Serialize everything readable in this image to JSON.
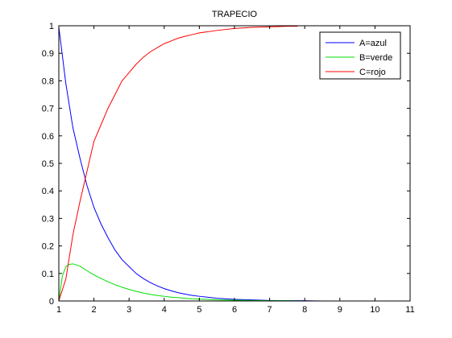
{
  "chart_data": {
    "type": "line",
    "title": "TRAPECIO",
    "xlabel": "",
    "ylabel": "",
    "xlim": [
      1,
      11
    ],
    "ylim": [
      0,
      1
    ],
    "xticks": [
      1,
      2,
      3,
      4,
      5,
      6,
      7,
      8,
      9,
      10,
      11
    ],
    "yticks": [
      0,
      0.1,
      0.2,
      0.3,
      0.4,
      0.5,
      0.6,
      0.7,
      0.8,
      0.9,
      1
    ],
    "grid": false,
    "legend": "top-right",
    "series": [
      {
        "name": "A=azul",
        "color": "#0000ff",
        "x": [
          1.0,
          1.2,
          1.4,
          1.6,
          1.8,
          2.0,
          2.2,
          2.4,
          2.6,
          2.8,
          3.0,
          3.2,
          3.4,
          3.6,
          3.8,
          4.0,
          4.2,
          4.4,
          4.6,
          4.8,
          5.0,
          5.5,
          6.0,
          6.5,
          7.0,
          7.5,
          8.0,
          8.5,
          9.0,
          9.5,
          10.0
        ],
        "y": [
          0.995,
          0.79,
          0.63,
          0.52,
          0.42,
          0.34,
          0.28,
          0.23,
          0.185,
          0.15,
          0.125,
          0.1,
          0.082,
          0.067,
          0.055,
          0.045,
          0.037,
          0.03,
          0.025,
          0.02,
          0.017,
          0.01,
          0.006,
          0.004,
          0.002,
          0.001,
          0.001,
          0.0,
          0.0,
          0.0,
          0.0
        ]
      },
      {
        "name": "B=verde",
        "color": "#00dd00",
        "x": [
          1.0,
          1.1,
          1.2,
          1.3,
          1.4,
          1.6,
          1.8,
          2.0,
          2.2,
          2.4,
          2.6,
          2.8,
          3.0,
          3.2,
          3.4,
          3.6,
          3.8,
          4.0,
          4.2,
          4.4,
          4.6,
          4.8,
          5.0,
          5.5,
          6.0,
          6.5,
          7.0,
          7.5,
          8.0,
          9.0,
          10.0
        ],
        "y": [
          0.0,
          0.09,
          0.125,
          0.133,
          0.135,
          0.127,
          0.11,
          0.095,
          0.082,
          0.07,
          0.059,
          0.05,
          0.042,
          0.035,
          0.029,
          0.024,
          0.02,
          0.017,
          0.014,
          0.012,
          0.01,
          0.008,
          0.007,
          0.004,
          0.003,
          0.002,
          0.001,
          0.001,
          0.0,
          0.0,
          0.0
        ]
      },
      {
        "name": "C=rojo",
        "color": "#ff0000",
        "x": [
          1.0,
          1.2,
          1.4,
          1.6,
          1.8,
          2.0,
          2.2,
          2.4,
          2.6,
          2.8,
          3.0,
          3.2,
          3.4,
          3.6,
          3.8,
          4.0,
          4.2,
          4.4,
          4.6,
          4.8,
          5.0,
          5.5,
          6.0,
          6.5,
          7.0,
          7.5,
          7.8
        ],
        "y": [
          0.0,
          0.08,
          0.24,
          0.36,
          0.47,
          0.58,
          0.64,
          0.7,
          0.75,
          0.8,
          0.83,
          0.86,
          0.885,
          0.905,
          0.92,
          0.935,
          0.945,
          0.955,
          0.962,
          0.968,
          0.974,
          0.983,
          0.99,
          0.994,
          0.996,
          0.998,
          0.998
        ]
      }
    ]
  }
}
